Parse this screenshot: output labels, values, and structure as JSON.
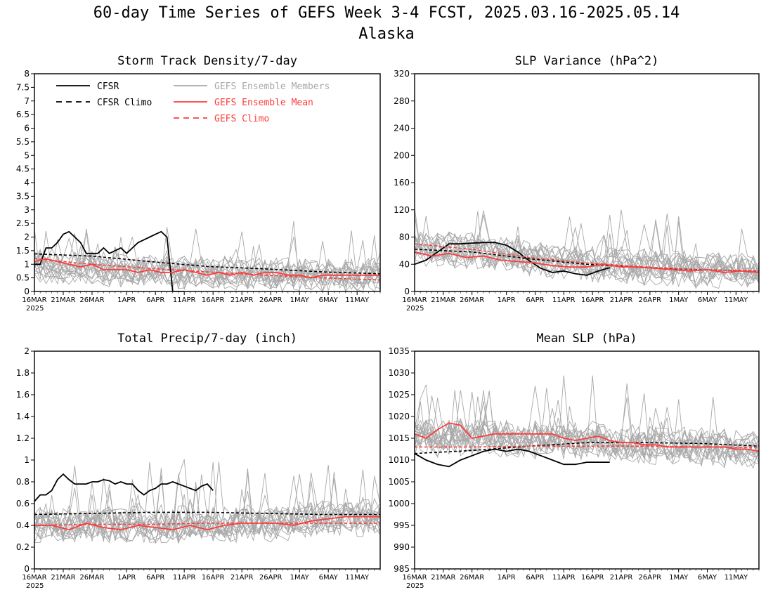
{
  "header": {
    "title": "60-day Time Series of GEFS Week 3-4 FCST, 2025.03.16-2025.05.14",
    "subtitle": "Alaska"
  },
  "x_axis": {
    "ticks": [
      "16MAR",
      "21MAR",
      "26MAR",
      "1APR",
      "6APR",
      "11APR",
      "16APR",
      "21APR",
      "26APR",
      "1MAY",
      "6MAY",
      "11MAY"
    ],
    "tick_days": [
      0,
      5,
      10,
      16,
      21,
      26,
      31,
      36,
      41,
      46,
      51,
      56
    ],
    "year_label": "2025",
    "days": 60
  },
  "colors": {
    "cfsr": "#000000",
    "members": "#a8a8a8",
    "ens_mean": "#ff3b3b",
    "gefs_climo": "#ff3b3b"
  },
  "legend": [
    {
      "label": "CFSR",
      "style": "solid",
      "color": "#000000"
    },
    {
      "label": "CFSR Climo",
      "style": "dashed",
      "color": "#000000"
    },
    {
      "label": "GEFS Ensemble Members",
      "style": "solid",
      "color": "#a8a8a8"
    },
    {
      "label": "GEFS Ensemble Mean",
      "style": "solid",
      "color": "#ff3b3b"
    },
    {
      "label": "GEFS Climo",
      "style": "dashed",
      "color": "#ff3b3b"
    }
  ],
  "chart_data": [
    {
      "type": "line",
      "title": "Storm Track Density/7-day",
      "ylim": [
        0,
        8
      ],
      "yticks": [
        "0",
        "0.5",
        "1",
        "1.5",
        "2",
        "2.5",
        "3",
        "3.5",
        "4",
        "4.5",
        "5",
        "5.5",
        "6",
        "6.5",
        "7",
        "7.5",
        "8"
      ],
      "series": [
        {
          "name": "CFSR",
          "x": [
            0,
            1,
            2,
            3,
            4,
            5,
            6,
            7,
            8,
            9,
            10,
            11,
            12,
            13,
            14,
            15,
            16,
            17,
            18,
            19,
            20,
            21,
            22,
            23,
            24,
            25,
            26
          ],
          "y": [
            1.0,
            1.0,
            1.6,
            1.6,
            1.8,
            2.1,
            2.2,
            2.0,
            1.8,
            1.4,
            1.4,
            1.4,
            1.6,
            1.4,
            1.5,
            1.6,
            1.4,
            1.6,
            1.8,
            1.9,
            2.0,
            2.1,
            2.2,
            2.0,
            0.0,
            0.0,
            0.0
          ]
        },
        {
          "name": "CFSR Climo",
          "x": [
            0,
            10,
            20,
            30,
            40,
            50,
            60
          ],
          "y": [
            1.38,
            1.3,
            1.1,
            0.92,
            0.83,
            0.72,
            0.65
          ]
        },
        {
          "name": "GEFS Ensemble Mean",
          "x": [
            0,
            2,
            4,
            6,
            8,
            10,
            12,
            14,
            16,
            18,
            20,
            22,
            24,
            26,
            28,
            30,
            32,
            34,
            36,
            38,
            40,
            42,
            44,
            46,
            48,
            50,
            52,
            54,
            56,
            58,
            60
          ],
          "y": [
            1.1,
            1.2,
            1.1,
            1.0,
            0.9,
            1.0,
            0.8,
            0.8,
            0.8,
            0.7,
            0.8,
            0.7,
            0.7,
            0.8,
            0.7,
            0.6,
            0.7,
            0.6,
            0.7,
            0.6,
            0.7,
            0.7,
            0.6,
            0.6,
            0.5,
            0.6,
            0.6,
            0.6,
            0.6,
            0.6,
            0.6
          ]
        },
        {
          "name": "GEFS Climo",
          "x": [
            0,
            10,
            20,
            30,
            40,
            50,
            60
          ],
          "y": [
            1.2,
            1.0,
            0.85,
            0.72,
            0.6,
            0.5,
            0.42
          ]
        }
      ],
      "members": {
        "count": 18,
        "base": [
          0.95,
          0.85,
          0.75,
          0.7,
          0.65,
          0.6,
          0.6
        ],
        "spread": 0.7
      }
    },
    {
      "type": "line",
      "title": "SLP Variance (hPa^2)",
      "ylim": [
        0,
        320
      ],
      "yticks": [
        "0",
        "40",
        "80",
        "120",
        "160",
        "200",
        "240",
        "280",
        "320"
      ],
      "series": [
        {
          "name": "CFSR",
          "x": [
            0,
            2,
            4,
            6,
            8,
            10,
            12,
            14,
            16,
            18,
            20,
            22,
            24,
            26,
            28,
            30,
            32,
            34
          ],
          "y": [
            40,
            46,
            58,
            70,
            70,
            71,
            72,
            72,
            68,
            58,
            45,
            34,
            28,
            30,
            26,
            24,
            30,
            35
          ]
        },
        {
          "name": "CFSR Climo",
          "x": [
            0,
            10,
            20,
            30,
            40,
            50,
            60
          ],
          "y": [
            62,
            58,
            48,
            40,
            35,
            32,
            30
          ]
        },
        {
          "name": "GEFS Ensemble Mean",
          "x": [
            0,
            3,
            6,
            9,
            12,
            15,
            18,
            21,
            24,
            27,
            30,
            33,
            36,
            39,
            42,
            45,
            48,
            51,
            54,
            57,
            60
          ],
          "y": [
            58,
            52,
            56,
            50,
            52,
            46,
            44,
            42,
            38,
            36,
            36,
            40,
            36,
            36,
            34,
            32,
            30,
            32,
            28,
            30,
            28
          ]
        },
        {
          "name": "GEFS Climo",
          "x": [
            0,
            10,
            20,
            30,
            40,
            50,
            60
          ],
          "y": [
            70,
            62,
            50,
            42,
            36,
            32,
            30
          ]
        }
      ],
      "members": {
        "count": 18,
        "base": [
          65,
          60,
          48,
          40,
          36,
          32,
          30
        ],
        "spread": 30
      }
    },
    {
      "type": "line",
      "title": "Total Precip/7-day (inch)",
      "ylim": [
        0,
        2
      ],
      "yticks": [
        "0",
        "0.2",
        "0.4",
        "0.6",
        "0.8",
        "1",
        "1.2",
        "1.4",
        "1.6",
        "1.8",
        "2"
      ],
      "series": [
        {
          "name": "CFSR",
          "x": [
            0,
            1,
            2,
            3,
            4,
            5,
            6,
            7,
            8,
            9,
            10,
            11,
            12,
            13,
            14,
            15,
            16,
            17,
            18,
            19,
            20,
            21,
            22,
            23,
            24,
            25,
            26,
            27,
            28,
            29,
            30,
            31
          ],
          "y": [
            0.62,
            0.68,
            0.68,
            0.72,
            0.82,
            0.87,
            0.82,
            0.78,
            0.78,
            0.78,
            0.8,
            0.8,
            0.82,
            0.81,
            0.78,
            0.8,
            0.78,
            0.78,
            0.72,
            0.68,
            0.72,
            0.74,
            0.78,
            0.78,
            0.8,
            0.78,
            0.76,
            0.74,
            0.72,
            0.76,
            0.78,
            0.72
          ]
        },
        {
          "name": "CFSR Climo",
          "x": [
            0,
            10,
            20,
            30,
            40,
            50,
            60
          ],
          "y": [
            0.5,
            0.51,
            0.52,
            0.52,
            0.51,
            0.5,
            0.5
          ]
        },
        {
          "name": "GEFS Ensemble Mean",
          "x": [
            0,
            3,
            6,
            9,
            12,
            15,
            18,
            21,
            24,
            27,
            30,
            33,
            36,
            39,
            42,
            45,
            48,
            51,
            54,
            57,
            60
          ],
          "y": [
            0.4,
            0.4,
            0.36,
            0.42,
            0.38,
            0.36,
            0.4,
            0.38,
            0.36,
            0.4,
            0.36,
            0.4,
            0.42,
            0.42,
            0.42,
            0.4,
            0.44,
            0.46,
            0.48,
            0.48,
            0.48
          ]
        },
        {
          "name": "GEFS Climo",
          "x": [
            0,
            10,
            20,
            30,
            40,
            50,
            60
          ],
          "y": [
            0.4,
            0.41,
            0.41,
            0.42,
            0.42,
            0.42,
            0.42
          ]
        }
      ],
      "members": {
        "count": 18,
        "base": [
          0.4,
          0.4,
          0.39,
          0.4,
          0.42,
          0.46,
          0.48
        ],
        "spread": 0.2
      }
    },
    {
      "type": "line",
      "title": "Mean SLP (hPa)",
      "ylim": [
        985,
        1035
      ],
      "yticks": [
        "985",
        "990",
        "995",
        "1000",
        "1005",
        "1010",
        "1015",
        "1020",
        "1025",
        "1030",
        "1035"
      ],
      "series": [
        {
          "name": "CFSR",
          "x": [
            0,
            2,
            4,
            6,
            8,
            10,
            12,
            14,
            16,
            18,
            20,
            22,
            24,
            26,
            28,
            30,
            32,
            34
          ],
          "y": [
            1011.5,
            1010,
            1009,
            1008.5,
            1010,
            1011,
            1012,
            1012.5,
            1012,
            1012.5,
            1012,
            1011,
            1010,
            1009,
            1009,
            1009.5,
            1009.5,
            1009.5
          ]
        },
        {
          "name": "CFSR Climo",
          "x": [
            0,
            10,
            20,
            30,
            40,
            50,
            60
          ],
          "y": [
            1011.5,
            1012.2,
            1013.2,
            1014,
            1014,
            1013.8,
            1013.2
          ]
        },
        {
          "name": "GEFS Ensemble Mean",
          "x": [
            0,
            2,
            4,
            6,
            8,
            10,
            12,
            14,
            16,
            18,
            20,
            22,
            24,
            26,
            28,
            30,
            32,
            34,
            36,
            38,
            40,
            42,
            44,
            46,
            48,
            50,
            52,
            54,
            56,
            58,
            60
          ],
          "y": [
            1016,
            1015,
            1017,
            1018.5,
            1018,
            1015,
            1015.5,
            1016,
            1016,
            1016,
            1016,
            1016,
            1016,
            1015,
            1014.5,
            1015,
            1015.5,
            1014.5,
            1014,
            1014,
            1013.5,
            1013.5,
            1013,
            1013,
            1013,
            1013,
            1013,
            1013,
            1012.5,
            1012.5,
            1012
          ]
        },
        {
          "name": "GEFS Climo",
          "x": [
            0,
            10,
            20,
            30,
            40,
            50,
            60
          ],
          "y": [
            1013,
            1013,
            1013.2,
            1013.2,
            1013.2,
            1013,
            1012.8
          ]
        }
      ],
      "members": {
        "count": 18,
        "base": [
          1015,
          1015.5,
          1015,
          1014.5,
          1013.5,
          1013,
          1012.5
        ],
        "spread": 5
      }
    }
  ]
}
